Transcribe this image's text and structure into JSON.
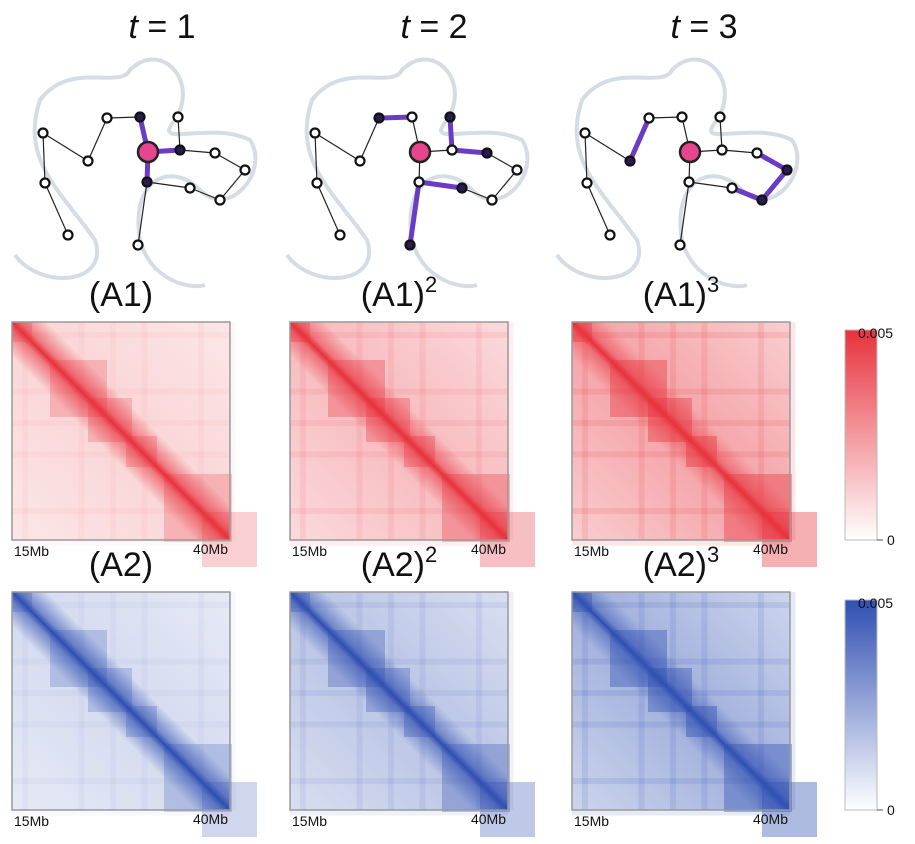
{
  "panels": [
    {
      "time_var": "t",
      "time_eq": "= 1"
    },
    {
      "time_var": "t",
      "time_eq": "= 2"
    },
    {
      "time_var": "t",
      "time_eq": "= 3"
    }
  ],
  "rows": [
    {
      "matrices": [
        {
          "title": "(A1)"
        },
        {
          "title": "(A1)",
          "power": "2"
        },
        {
          "title": "(A1)",
          "power": "3"
        }
      ],
      "x_start": "15Mb",
      "x_end": "40Mb",
      "colorbar_max": "0.005",
      "colorbar_min": "0"
    },
    {
      "matrices": [
        {
          "title": "(A2)"
        },
        {
          "title": "(A2)",
          "power": "2"
        },
        {
          "title": "(A2)",
          "power": "3"
        }
      ],
      "x_start": "15Mb",
      "x_end": "40Mb",
      "colorbar_max": "0.005",
      "colorbar_min": "0"
    }
  ]
}
